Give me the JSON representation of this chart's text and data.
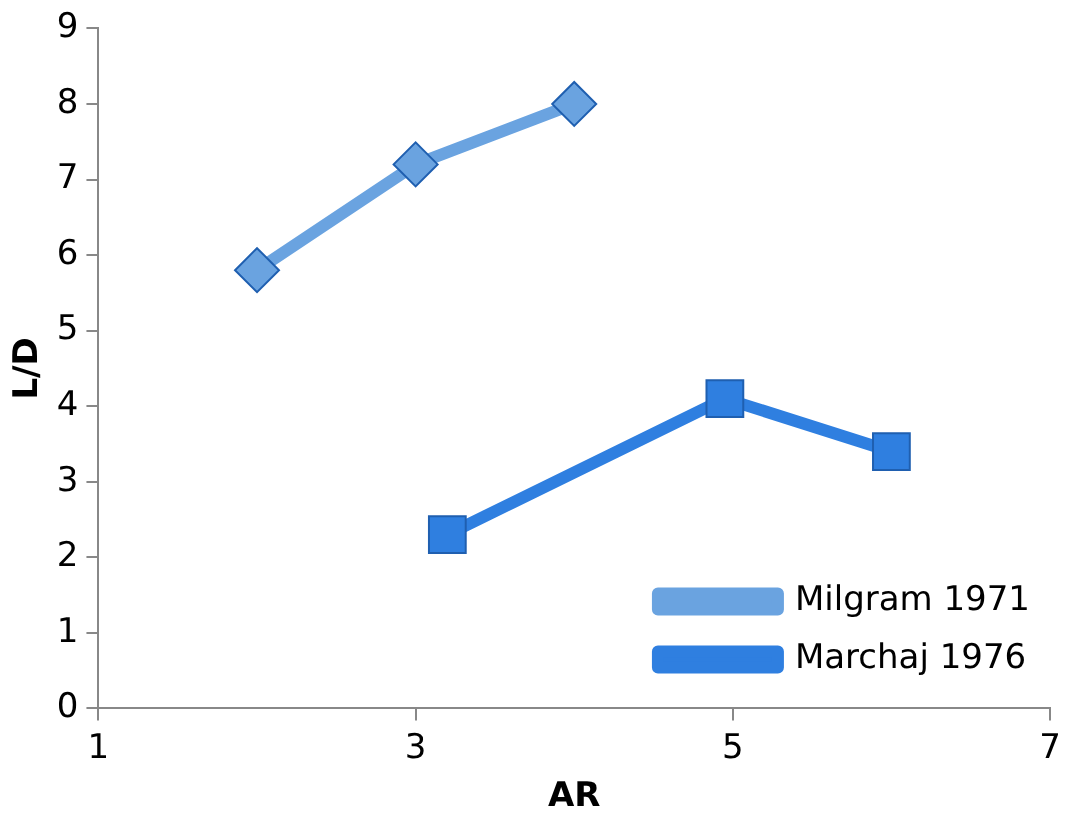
{
  "chart_data": {
    "type": "line",
    "xlabel": "AR",
    "ylabel": "L/D",
    "xlim": [
      1,
      7
    ],
    "xticks": [
      1,
      3,
      5,
      7
    ],
    "ylim": [
      0,
      9
    ],
    "yticks": [
      0,
      1,
      2,
      3,
      4,
      5,
      6,
      7,
      8,
      9
    ],
    "grid": false,
    "legend": "bottom right",
    "series": [
      {
        "name": "Milgram 1971",
        "color": "#6aa3e0",
        "marker": "diamond",
        "x": [
          2,
          3,
          4
        ],
        "values": [
          5.8,
          7.2,
          8.0
        ]
      },
      {
        "name": "Marchaj 1976",
        "color": "#2f7fe0",
        "marker": "square",
        "x": [
          3.2,
          4.95,
          6
        ],
        "values": [
          2.3,
          4.1,
          3.4
        ]
      }
    ]
  }
}
